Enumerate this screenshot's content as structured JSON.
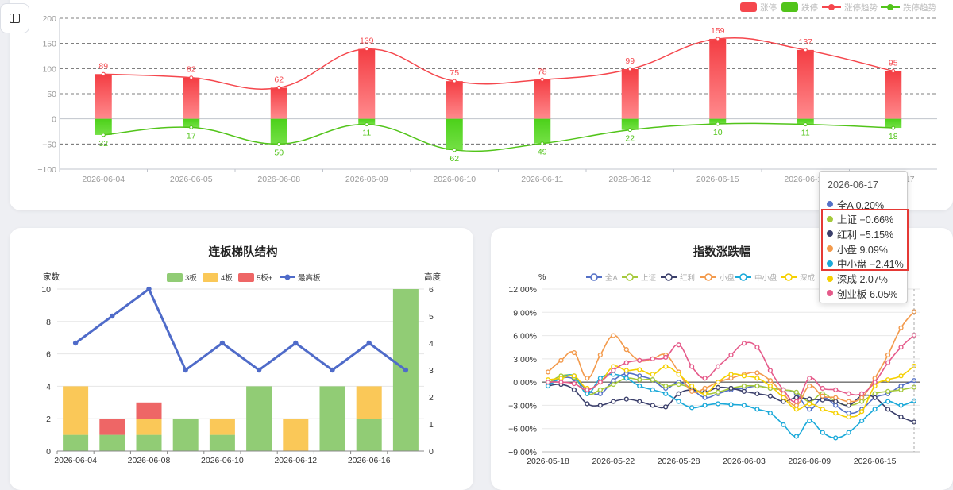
{
  "sidebar_toggle": {
    "icon": "sidebar-panel-icon"
  },
  "chart_data": [
    {
      "id": "limit",
      "type": "bar",
      "title": "",
      "legend": [
        "涨停",
        "跌停",
        "涨停趋势",
        "跌停趋势"
      ],
      "legend_position": "top-right",
      "categories": [
        "2026-06-04",
        "2026-06-05",
        "2026-06-08",
        "2026-06-09",
        "2026-06-10",
        "2026-06-11",
        "2026-06-12",
        "2026-06-15",
        "2026-06-16",
        "2026-06-17"
      ],
      "up_labels": [
        "89",
        "82",
        "62",
        "139",
        "75",
        "78",
        "99",
        "159",
        "137",
        "95"
      ],
      "down_labels": [
        "32",
        "17",
        "50",
        "11",
        "62",
        "49",
        "22",
        "10",
        "11",
        "18"
      ],
      "series": [
        {
          "name": "涨停",
          "values": [
            89,
            82,
            62,
            139,
            75,
            78,
            99,
            159,
            137,
            95
          ],
          "color": "#f5474d"
        },
        {
          "name": "跌停",
          "values": [
            -32,
            -17,
            -50,
            -11,
            -62,
            -49,
            -22,
            -10,
            -11,
            -18
          ],
          "color": "#52c41a"
        }
      ],
      "y_ticks": [
        "200",
        "150",
        "100",
        "50",
        "0",
        "−50",
        "−100"
      ],
      "ylim": [
        -100,
        200
      ],
      "grid": true
    },
    {
      "id": "ladder",
      "type": "bar",
      "title": "连板梯队结构",
      "ylabel_left": "家数",
      "ylabel_right": "高度",
      "legend": [
        "3板",
        "4板",
        "5板+",
        "最高板"
      ],
      "legend_position": "top",
      "categories": [
        "2026-06-04",
        "2026-06-05",
        "2026-06-08",
        "2026-06-09",
        "2026-06-10",
        "2026-06-11",
        "2026-06-12",
        "2026-06-15",
        "2026-06-16",
        "2026-06-17"
      ],
      "x_tick_labels": [
        "2026-06-04",
        "2026-06-08",
        "2026-06-10",
        "2026-06-12",
        "2026-06-16"
      ],
      "series": [
        {
          "name": "3板",
          "values": [
            1,
            1,
            1,
            2,
            1,
            4,
            0,
            4,
            2,
            10
          ],
          "color": "#91cc75"
        },
        {
          "name": "4板",
          "values": [
            3,
            0,
            1,
            0,
            1,
            0,
            2,
            0,
            2,
            0
          ],
          "color": "#fac858"
        },
        {
          "name": "5板+",
          "values": [
            0,
            1,
            1,
            0,
            0,
            0,
            0,
            0,
            0,
            0
          ],
          "color": "#ee6666"
        },
        {
          "name": "最高板",
          "values": [
            4,
            5,
            6,
            3,
            4,
            3,
            4,
            3,
            4,
            3
          ],
          "color": "#4f6bc9"
        }
      ],
      "y_ticks_left": [
        "10",
        "8",
        "6",
        "4",
        "2",
        "0"
      ],
      "y_ticks_right": [
        "6",
        "5",
        "4",
        "3",
        "2",
        "1",
        "0"
      ],
      "ylim": [
        0,
        10
      ],
      "ylim_right": [
        0,
        6
      ]
    },
    {
      "id": "index",
      "type": "line",
      "title": "指数涨跌幅",
      "ylabel": "%",
      "legend": [
        "全A",
        "上证",
        "红利",
        "小盘",
        "中小盘",
        "深成"
      ],
      "legend_position": "top",
      "x_tick_labels": [
        "2026-05-18",
        "2026-05-22",
        "2026-05-28",
        "2026-06-03",
        "2026-06-09",
        "2026-06-15"
      ],
      "y_ticks": [
        "12.00%",
        "9.00%",
        "6.00%",
        "3.00%",
        "0.00%",
        "−3.00%",
        "−6.00%",
        "−9.00%"
      ],
      "ylim": [
        -9,
        12
      ],
      "series": [
        {
          "name": "全A",
          "color": "#5470c6",
          "values": [
            -0.3,
            0.5,
            0.4,
            -1.0,
            -1.5,
            0.2,
            1.1,
            0.8,
            0.3,
            -0.8,
            0.0,
            -0.9,
            -2.0,
            -1.5,
            -1.0,
            -0.8,
            -0.5,
            -0.8,
            -1.0,
            -1.5,
            -3.5,
            -2.0,
            -3.0,
            -4.0,
            -3.5,
            -2.0,
            -1.5,
            -0.5,
            0.2
          ]
        },
        {
          "name": "上证",
          "color": "#a5c93b",
          "values": [
            -0.2,
            0.8,
            0.6,
            -1.5,
            -1.0,
            -0.3,
            0.5,
            0.3,
            0.3,
            -0.5,
            -0.3,
            -0.8,
            -1.5,
            -1.3,
            -0.8,
            -0.5,
            -0.5,
            -0.8,
            -1.0,
            -1.3,
            -2.5,
            -1.5,
            -2.5,
            -3.0,
            -2.5,
            -1.5,
            -1.2,
            -1.0,
            -0.66
          ]
        },
        {
          "name": "红利",
          "color": "#3b3f6b",
          "values": [
            -0.5,
            -0.3,
            -1.0,
            -2.8,
            -3.0,
            -2.5,
            -2.2,
            -2.5,
            -3.0,
            -3.2,
            -1.5,
            -1.0,
            -1.3,
            -0.7,
            -0.8,
            -1.2,
            -1.5,
            -1.8,
            -2.5,
            -2.0,
            -2.2,
            -2.3,
            -2.5,
            -3.0,
            -1.8,
            -2.0,
            -3.5,
            -4.5,
            -5.15
          ]
        },
        {
          "name": "小盘",
          "color": "#f39a4c",
          "values": [
            1.3,
            2.8,
            3.8,
            0.5,
            3.5,
            6.0,
            4.2,
            2.8,
            3.0,
            3.5,
            1.3,
            -1.2,
            -0.8,
            0.0,
            0.5,
            1.0,
            1.2,
            0.2,
            -1.5,
            -3.0,
            -0.5,
            -1.8,
            -2.0,
            -2.5,
            -2.0,
            0.5,
            3.5,
            7.0,
            9.09
          ]
        },
        {
          "name": "中小盘",
          "color": "#1aa9d9",
          "values": [
            -0.5,
            0.5,
            0.8,
            -1.5,
            0.5,
            1.0,
            0.5,
            -0.5,
            -1.0,
            -1.5,
            -2.5,
            -3.3,
            -3.0,
            -2.8,
            -2.9,
            -3.0,
            -3.5,
            -4.0,
            -5.5,
            -7.0,
            -5.0,
            -6.5,
            -7.2,
            -6.5,
            -5.0,
            -3.5,
            -2.5,
            -3.0,
            -2.41
          ]
        },
        {
          "name": "深成",
          "color": "#f5d000",
          "values": [
            0.3,
            0.5,
            0.8,
            -0.8,
            0.0,
            2.0,
            1.5,
            1.6,
            1.0,
            2.0,
            1.0,
            -0.5,
            -1.5,
            0.0,
            1.0,
            0.8,
            0.5,
            -0.5,
            -2.0,
            -3.5,
            -2.8,
            -3.5,
            -4.0,
            -4.5,
            -3.8,
            -0.5,
            0.3,
            0.8,
            2.07
          ]
        },
        {
          "name": "创业板",
          "color": "#e55a8a",
          "values": [
            0.0,
            0.0,
            -0.2,
            -1.0,
            0.0,
            1.5,
            2.5,
            2.8,
            3.0,
            3.2,
            4.8,
            2.0,
            0.5,
            2.0,
            3.5,
            5.0,
            4.5,
            1.5,
            -1.0,
            -2.5,
            0.5,
            -0.8,
            -1.0,
            -1.5,
            -1.5,
            0.0,
            2.5,
            4.5,
            6.05
          ]
        }
      ]
    }
  ],
  "tooltip": {
    "date": "2026-06-17",
    "rows": [
      {
        "label": "全A 0.20%",
        "color": "#5470c6"
      },
      {
        "label": "上证 −0.66%",
        "color": "#a5c93b"
      },
      {
        "label": "红利 −5.15%",
        "color": "#3b3f6b"
      },
      {
        "label": "小盘 9.09%",
        "color": "#f39a4c"
      },
      {
        "label": "中小盘 −2.41%",
        "color": "#1aa9d9"
      },
      {
        "label": "深成 2.07%",
        "color": "#f5d000"
      },
      {
        "label": "创业板 6.05%",
        "color": "#e55a8a"
      }
    ]
  }
}
